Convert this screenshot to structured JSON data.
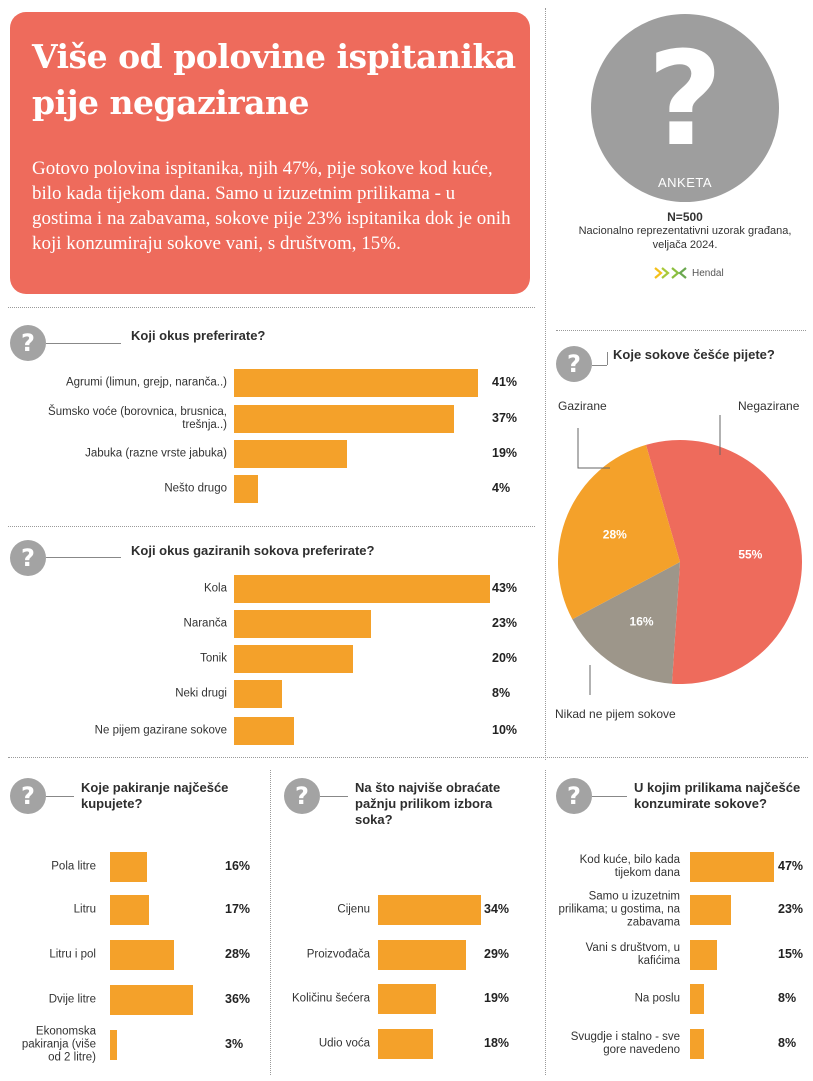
{
  "header": {
    "title": "Više od polovine ispitanika pije negazirane",
    "text": "Gotovo polovina ispitanika, njih 47%, pije sokove kod kuće, bilo kada tijekom dana. Samo u izuzetnim prilikama - u gostima i na zabavama, sokove pije  23% ispitanika dok je onih koji konzumiraju sokove vani, s društvom, 15%."
  },
  "anketa": {
    "icon_glyph": "?",
    "label": "ANKETA",
    "n": "N=500",
    "desc": "Nacionalno reprezentativni uzorak građana, veljača 2024.",
    "brand": "Hendal"
  },
  "question_glyph": "?",
  "chart_data": [
    {
      "type": "bar",
      "title": "Koji okus preferirate?",
      "categories": [
        "Agrumi (limun, grejp, naranča..)",
        "Šumsko voće (borovnica, brusnica, trešnja..)",
        "Jabuka (razne vrste jabuka)",
        "Nešto drugo"
      ],
      "values": [
        41,
        37,
        19,
        4
      ],
      "labels": [
        "41%",
        "37%",
        "19%",
        "4%"
      ]
    },
    {
      "type": "bar",
      "title": "Koji okus gaziranih sokova preferirate?",
      "categories": [
        "Kola",
        "Naranča",
        "Tonik",
        "Neki drugi",
        "Ne pijem gazirane sokove"
      ],
      "values": [
        43,
        23,
        20,
        8,
        10
      ],
      "labels": [
        "43%",
        "23%",
        "20%",
        "8%",
        "10%"
      ]
    },
    {
      "type": "pie",
      "title": "Koje sokove češće pijete?",
      "categories": [
        "Negazirane",
        "Nikad ne pijem sokove",
        "Gazirane"
      ],
      "values": [
        55,
        16,
        28
      ],
      "labels": [
        "55%",
        "16%",
        "28%"
      ],
      "colors": [
        "#ee6b5c",
        "#9d968a",
        "#f4a12a"
      ]
    },
    {
      "type": "bar",
      "title": "Koje pakiranje najčešće kupujete?",
      "categories": [
        "Pola litre",
        "Litru",
        "Litru i pol",
        "Dvije litre",
        "Ekonomska pakiranja (više od 2 litre)"
      ],
      "values": [
        16,
        17,
        28,
        36,
        3
      ],
      "labels": [
        "16%",
        "17%",
        "28%",
        "36%",
        "3%"
      ]
    },
    {
      "type": "bar",
      "title": "Na što najviše obraćate pažnju prilikom izbora soka?",
      "categories": [
        "Cijenu",
        "Proizvođača",
        "Količinu šećera",
        "Udio voća"
      ],
      "values": [
        34,
        29,
        19,
        18
      ],
      "labels": [
        "34%",
        "29%",
        "19%",
        "18%"
      ]
    },
    {
      "type": "bar",
      "title": "U kojim prilikama najčešće konzumirate sokove?",
      "categories": [
        "Kod kuće, bilo kada tijekom dana",
        "Samo u izuzetnim prilikama; u gostima, na zabavama",
        "Vani s društvom, u kafićima",
        "Na poslu",
        "Svugdje i stalno - sve gore navedeno"
      ],
      "values": [
        47,
        23,
        15,
        8,
        8
      ],
      "labels": [
        "47%",
        "23%",
        "15%",
        "8%",
        "8%"
      ]
    }
  ],
  "colors": {
    "bar": "#f4a12a",
    "header": "#ee6b5c",
    "icon": "#a3a3a3"
  }
}
